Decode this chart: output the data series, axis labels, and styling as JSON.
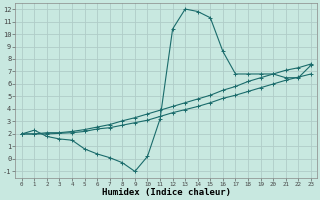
{
  "xlabel": "Humidex (Indice chaleur)",
  "background_color": "#c8e8e0",
  "grid_color": "#b0ccc8",
  "line_color": "#1a6b6b",
  "xlim": [
    -0.5,
    23.5
  ],
  "ylim": [
    -1.5,
    12.5
  ],
  "xticks": [
    0,
    1,
    2,
    3,
    4,
    5,
    6,
    7,
    8,
    9,
    10,
    11,
    12,
    13,
    14,
    15,
    16,
    17,
    18,
    19,
    20,
    21,
    22,
    23
  ],
  "yticks": [
    -1,
    0,
    1,
    2,
    3,
    4,
    5,
    6,
    7,
    8,
    9,
    10,
    11,
    12
  ],
  "line1_x": [
    0,
    1,
    2,
    3,
    4,
    5,
    6,
    7,
    8,
    9,
    10,
    11,
    12,
    13,
    14,
    15,
    16,
    17,
    18,
    19,
    20,
    21,
    22,
    23
  ],
  "line1_y": [
    2.0,
    2.3,
    1.8,
    1.6,
    1.5,
    0.8,
    0.4,
    0.1,
    -0.3,
    -1.0,
    0.2,
    3.2,
    10.4,
    12.0,
    11.8,
    11.3,
    8.6,
    6.8,
    6.8,
    6.8,
    6.8,
    6.5,
    6.5,
    7.5
  ],
  "line2_x": [
    0,
    1,
    2,
    3,
    4,
    5,
    6,
    7,
    8,
    9,
    10,
    11,
    12,
    13,
    14,
    15,
    16,
    17,
    18,
    19,
    20,
    21,
    22,
    23
  ],
  "line2_y": [
    2.0,
    2.0,
    2.0,
    2.05,
    2.1,
    2.2,
    2.4,
    2.5,
    2.7,
    2.9,
    3.1,
    3.4,
    3.7,
    3.95,
    4.2,
    4.5,
    4.85,
    5.1,
    5.4,
    5.7,
    6.0,
    6.3,
    6.55,
    6.8
  ],
  "line3_x": [
    0,
    1,
    2,
    3,
    4,
    5,
    6,
    7,
    8,
    9,
    10,
    11,
    12,
    13,
    14,
    15,
    16,
    17,
    18,
    19,
    20,
    21,
    22,
    23
  ],
  "line3_y": [
    2.0,
    2.0,
    2.1,
    2.1,
    2.2,
    2.35,
    2.55,
    2.75,
    3.05,
    3.3,
    3.6,
    3.9,
    4.2,
    4.5,
    4.8,
    5.1,
    5.5,
    5.8,
    6.2,
    6.5,
    6.8,
    7.1,
    7.3,
    7.6
  ]
}
